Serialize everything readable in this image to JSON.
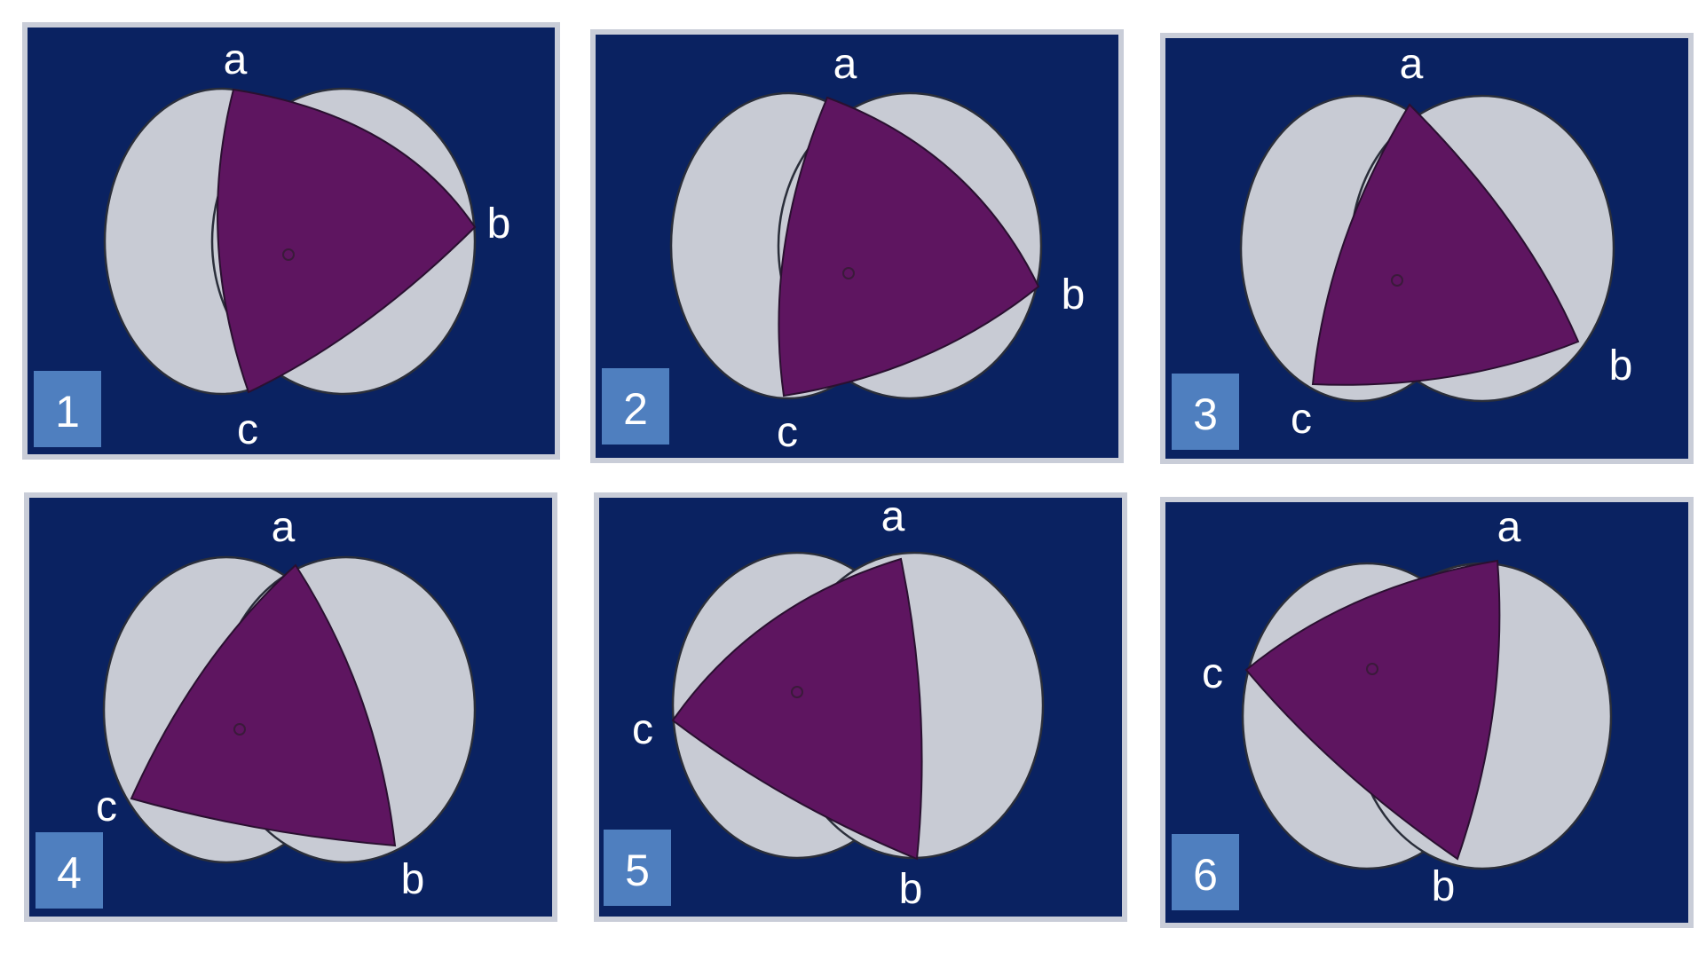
{
  "panels": [
    {
      "number": "1",
      "vertices": {
        "a": "a",
        "b": "b",
        "c": "c"
      }
    },
    {
      "number": "2",
      "vertices": {
        "a": "a",
        "b": "b",
        "c": "c"
      }
    },
    {
      "number": "3",
      "vertices": {
        "a": "a",
        "b": "b",
        "c": "c"
      }
    },
    {
      "number": "4",
      "vertices": {
        "a": "a",
        "b": "b",
        "c": "c"
      }
    },
    {
      "number": "5",
      "vertices": {
        "a": "a",
        "b": "b",
        "c": "c"
      }
    },
    {
      "number": "6",
      "vertices": {
        "a": "a",
        "b": "b",
        "c": "c"
      }
    }
  ],
  "colors": {
    "panel_background": "#0a2261",
    "lobes": "#c8cbd4",
    "triangle": "#5e1560",
    "badge": "#4f7fbf",
    "labels": "#ffffff"
  }
}
